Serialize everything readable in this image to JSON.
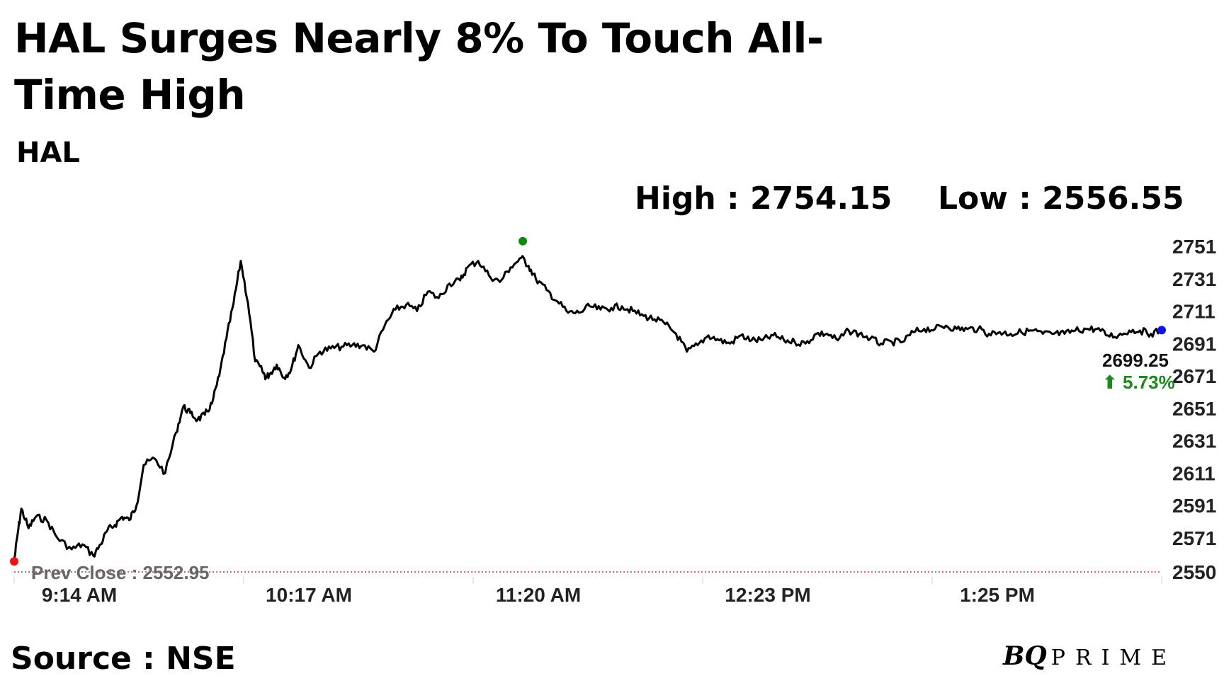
{
  "header": {
    "title": "HAL Surges Nearly 8% To Touch All-Time High",
    "subtitle": "HAL",
    "high_text": "High : 2754.15",
    "low_text": "Low : 2556.55"
  },
  "footer": {
    "source": "Source : NSE",
    "brand_bq": "BQ",
    "brand_prime": "PRIME"
  },
  "last_price_text": "2699.25",
  "last_change_text": "⬆ 5.73%",
  "prev_close_text": "Prev Close : 2552.95",
  "colors": {
    "line": "#000000",
    "start_marker": "#ee1111",
    "high_marker": "#118811",
    "end_marker": "#1111ee",
    "prev_close": "#cc3333",
    "change_up": "#1a8a1a"
  },
  "chart_data": {
    "type": "line",
    "title": "HAL",
    "xlabel": "",
    "ylabel": "",
    "ylim": [
      2550,
      2751
    ],
    "yticks": [
      2751,
      2731,
      2711,
      2691,
      2671,
      2651,
      2631,
      2611,
      2591,
      2571,
      2550
    ],
    "xticks": [
      "9:14 AM",
      "10:17 AM",
      "11:20 AM",
      "12:23 PM",
      "1:25 PM"
    ],
    "high": 2754.15,
    "low": 2556.55,
    "prev_close": 2552.95,
    "last": 2699.25,
    "change_pct": 5.73,
    "series": [
      {
        "x": [
          "9:14",
          "9:15",
          "9:16",
          "9:18",
          "9:20",
          "9:23",
          "9:26",
          "9:30",
          "9:33",
          "9:36",
          "9:38",
          "9:40",
          "9:42",
          "9:44",
          "9:46",
          "9:48",
          "9:50",
          "9:53",
          "9:56",
          "9:59",
          "10:01",
          "10:03",
          "10:05",
          "10:07",
          "10:09",
          "10:11",
          "10:13",
          "10:15",
          "10:17",
          "10:19",
          "10:21",
          "10:23",
          "10:24",
          "10:25",
          "10:27",
          "10:29",
          "10:31",
          "10:33",
          "10:36",
          "10:39",
          "10:42",
          "10:45",
          "10:48",
          "10:51",
          "10:54",
          "10:57",
          "11:00",
          "11:03",
          "11:06",
          "11:09",
          "11:12",
          "11:15",
          "11:18",
          "11:20",
          "11:23",
          "11:26",
          "11:29",
          "11:32",
          "11:35",
          "11:37",
          "11:39",
          "11:42",
          "11:45",
          "11:48",
          "11:51",
          "11:54",
          "11:57",
          "12:00",
          "12:03",
          "12:06",
          "12:09",
          "12:12",
          "12:15",
          "12:18",
          "12:21",
          "12:24",
          "12:27",
          "12:30",
          "12:33",
          "12:36",
          "12:39",
          "12:42",
          "12:45",
          "12:48",
          "12:51",
          "12:54",
          "12:57",
          "13:00",
          "13:03",
          "13:06",
          "13:09",
          "13:12",
          "13:15",
          "13:18",
          "13:21",
          "13:24",
          "13:27",
          "13:30",
          "13:33",
          "13:36",
          "13:39",
          "13:42",
          "13:45",
          "13:48",
          "13:51",
          "13:54",
          "13:57",
          "14:00",
          "14:03",
          "14:06",
          "14:09",
          "14:12",
          "14:15",
          "14:18",
          "14:21",
          "14:24",
          "14:27",
          "14:30",
          "14:33"
        ],
        "y": [
          2556.5,
          2574,
          2589,
          2577,
          2584,
          2582,
          2571,
          2564,
          2567,
          2560,
          2567,
          2576,
          2579,
          2584,
          2582,
          2591,
          2616,
          2620,
          2611,
          2636,
          2652,
          2648,
          2644,
          2647,
          2654,
          2671,
          2694,
          2716,
          2742,
          2716,
          2680,
          2674,
          2670,
          2672,
          2678,
          2670,
          2675,
          2690,
          2676,
          2686,
          2688,
          2689,
          2690,
          2690,
          2686,
          2702,
          2712,
          2715,
          2711,
          2723,
          2719,
          2728,
          2730,
          2738,
          2742,
          2733,
          2729,
          2738,
          2744,
          2739,
          2731,
          2724,
          2717,
          2710,
          2710,
          2714,
          2712,
          2713,
          2714,
          2711,
          2708,
          2706,
          2703,
          2697,
          2686,
          2690,
          2696,
          2693,
          2691,
          2696,
          2693,
          2693,
          2696,
          2693,
          2692,
          2691,
          2697,
          2697,
          2693,
          2699,
          2697,
          2694,
          2691,
          2692,
          2692,
          2698,
          2700,
          2700,
          2702,
          2700,
          2700,
          2700,
          2697,
          2698,
          2697,
          2698,
          2699,
          2697,
          2697,
          2697,
          2699,
          2700,
          2700,
          2696,
          2696,
          2699,
          2699,
          2697,
          2699.25
        ]
      }
    ]
  }
}
